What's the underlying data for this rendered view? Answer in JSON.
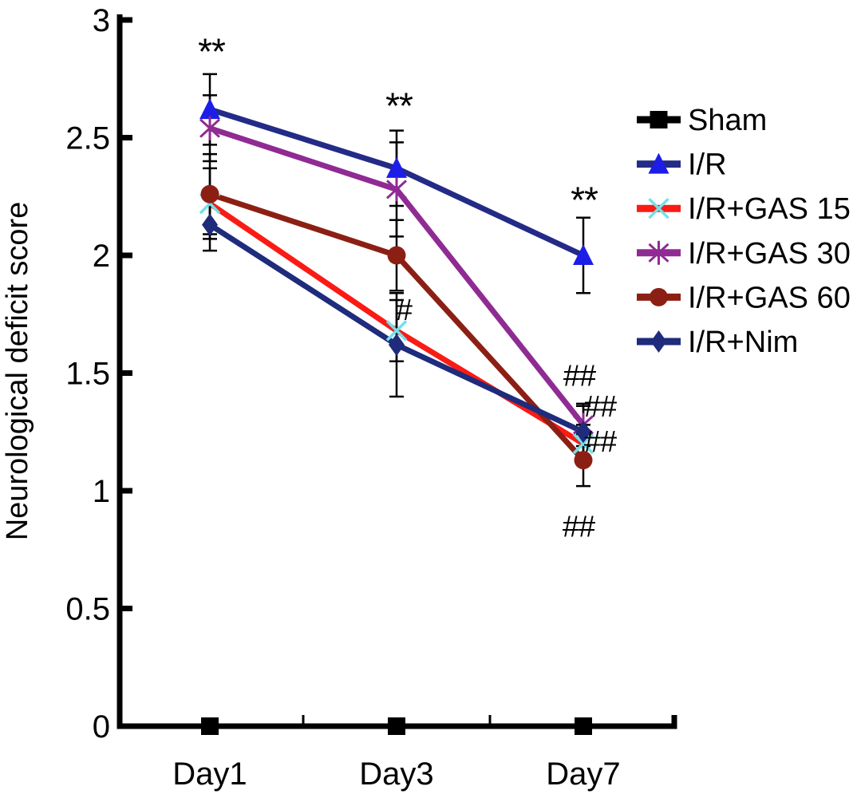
{
  "figure": {
    "title": "",
    "ylabel": "Neurological deficit score"
  },
  "chart_data": {
    "type": "line",
    "title": "",
    "xlabel": "",
    "ylabel": "Neurological deficit score",
    "categories": [
      "Day1",
      "Day3",
      "Day7"
    ],
    "ylim": [
      0,
      3
    ],
    "ytick_values": [
      0,
      0.5,
      1,
      1.5,
      2,
      2.5,
      3
    ],
    "ytick_labels": [
      "0",
      "0.5",
      "1",
      "1.5",
      "2",
      "2.5",
      "3"
    ],
    "grid": false,
    "legend_position": "right",
    "axis_color": "#000000",
    "error_bar_color": "#000000",
    "series": [
      {
        "name": "Sham",
        "values": [
          0,
          0,
          0
        ],
        "errors": [
          0,
          0,
          0
        ],
        "line_color": "#000000",
        "marker": "square",
        "marker_color": "#000000"
      },
      {
        "name": "I/R",
        "values": [
          2.62,
          2.37,
          2.0
        ],
        "errors": [
          0.15,
          0.16,
          0.16
        ],
        "line_color": "#232B87",
        "marker": "triangle",
        "marker_color": "#1D1DE8"
      },
      {
        "name": "I/R+GAS 15",
        "values": [
          2.22,
          1.68,
          1.2
        ],
        "errors": [
          0.15,
          0.13,
          0.08
        ],
        "line_color": "#FA1B14",
        "marker": "x",
        "marker_color": "#70E2EC"
      },
      {
        "name": "I/R+GAS 30",
        "values": [
          2.54,
          2.28,
          1.28
        ],
        "errors": [
          0.14,
          0.2,
          0.09
        ],
        "line_color": "#8F2B93",
        "marker": "asterisk",
        "marker_color": "#8F2B93"
      },
      {
        "name": "I/R+GAS 60",
        "values": [
          2.26,
          2.0,
          1.13
        ],
        "errors": [
          0.17,
          0.15,
          0.11
        ],
        "line_color": "#8C1F14",
        "marker": "circle",
        "marker_color": "#8C1F14"
      },
      {
        "name": "I/R+Nim",
        "values": [
          2.13,
          1.62,
          1.25
        ],
        "errors": [
          0.11,
          0.22,
          0.11
        ],
        "line_color": "#1F2B7B",
        "marker": "diamond",
        "marker_color": "#1F2B7B"
      }
    ],
    "annotations": [
      {
        "text": "**",
        "category_index": 0,
        "value": 2.89,
        "dx": 2
      },
      {
        "text": "**",
        "category_index": 1,
        "value": 2.66,
        "dx": 3
      },
      {
        "text": "**",
        "category_index": 2,
        "value": 2.26,
        "dx": 1
      },
      {
        "text": "#",
        "category_index": 1,
        "value": 1.77,
        "dx": 9
      },
      {
        "text": "##",
        "category_index": 2,
        "value": 1.49,
        "dx": -5
      },
      {
        "text": "##",
        "category_index": 2,
        "value": 1.36,
        "dx": 21
      },
      {
        "text": "##",
        "category_index": 2,
        "value": 1.21,
        "dx": 21
      },
      {
        "text": "##",
        "category_index": 2,
        "value": 0.85,
        "dx": -6
      }
    ]
  }
}
